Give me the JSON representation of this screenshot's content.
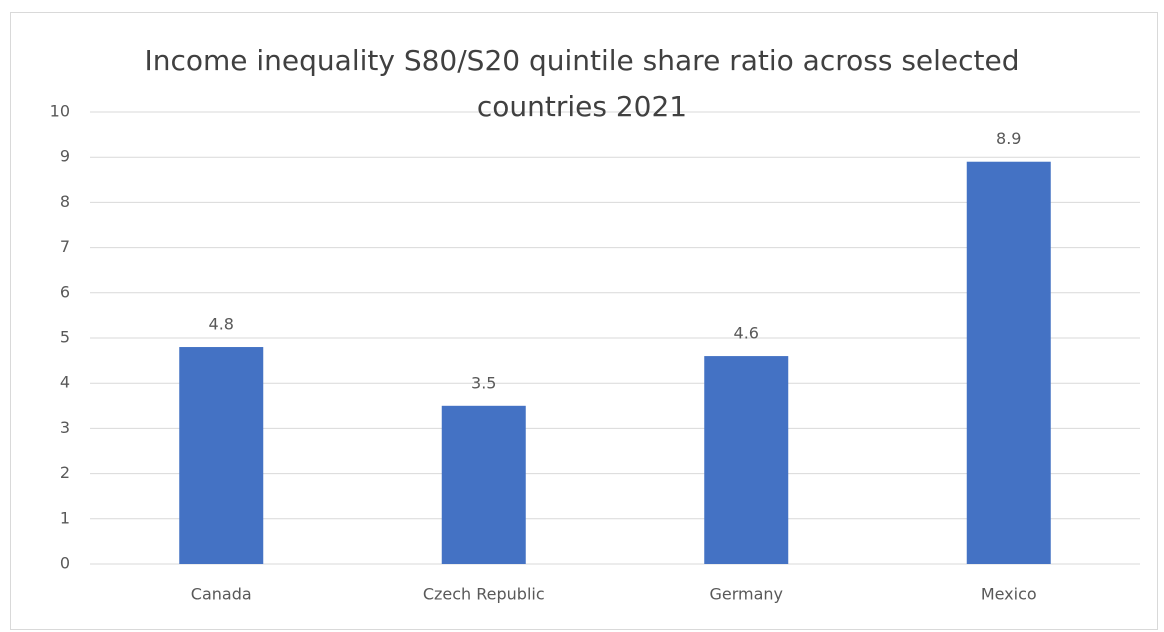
{
  "chart_data": {
    "type": "bar",
    "title": "Income inequality S80/S20 quintile share ratio across selected countries 2021",
    "categories": [
      "Canada",
      "Czech Republic",
      "Germany",
      "Mexico"
    ],
    "values": [
      4.8,
      3.5,
      4.6,
      8.9
    ],
    "color": "#4472c4",
    "ylim": [
      0,
      10
    ],
    "yticks": [
      0,
      1,
      2,
      3,
      4,
      5,
      6,
      7,
      8,
      9,
      10
    ],
    "grid": true
  }
}
